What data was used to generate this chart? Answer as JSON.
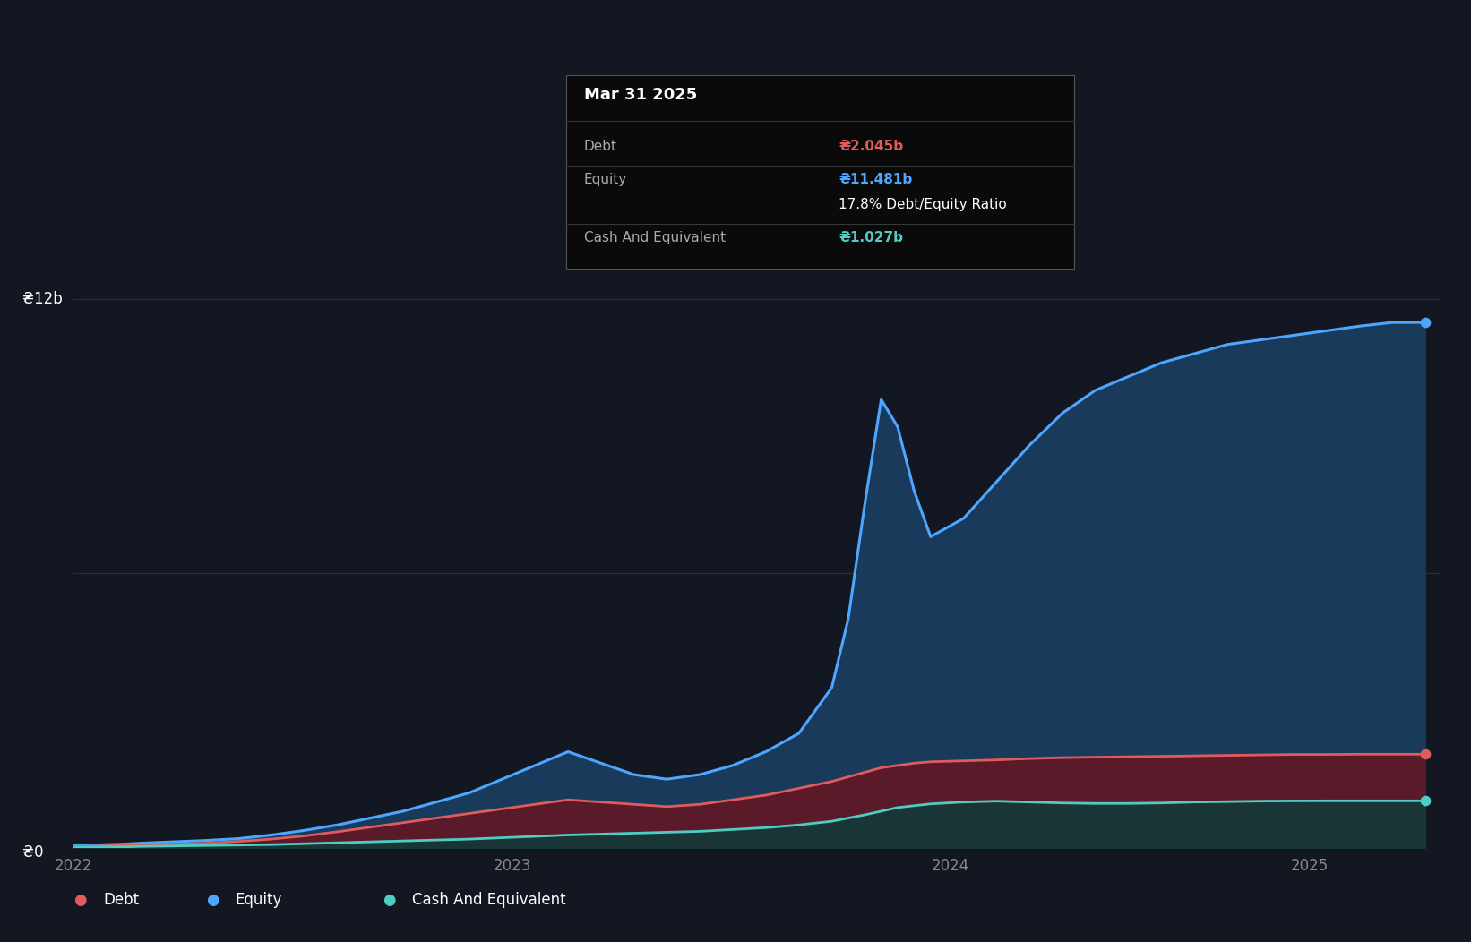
{
  "bg_color": "#131722",
  "grid_color": "#2a2e39",
  "equity_color": "#4da6ff",
  "equity_fill_color": "#1a3a5c",
  "debt_color": "#e05c5c",
  "debt_fill_color": "#5a1a2a",
  "cash_color": "#4ecdc4",
  "cash_fill_color": "#1a3535",
  "ylabel_top": "₴12b",
  "ylabel_zero": "₴0",
  "legend": [
    {
      "label": "Debt",
      "color": "#e05c5c"
    },
    {
      "label": "Equity",
      "color": "#4da6ff"
    },
    {
      "label": "Cash And Equivalent",
      "color": "#4ecdc4"
    }
  ],
  "tooltip": {
    "date": "Mar 31 2025",
    "rows": [
      {
        "label": "Debt",
        "value": "₴2.045b",
        "label_color": "#aaaaaa",
        "value_color": "#e05c5c"
      },
      {
        "label": "Equity",
        "value": "₴11.481b",
        "label_color": "#aaaaaa",
        "value_color": "#4da6ff"
      },
      {
        "label": "",
        "value": "17.8% Debt/Equity Ratio",
        "label_color": "",
        "value_color": "#ffffff"
      },
      {
        "label": "Cash And Equivalent",
        "value": "₴1.027b",
        "label_color": "#aaaaaa",
        "value_color": "#4ecdc4"
      }
    ]
  },
  "time_points": [
    0.0,
    0.05,
    0.1,
    0.15,
    0.2,
    0.3,
    0.4,
    0.5,
    0.6,
    0.7,
    0.8,
    0.9,
    1.0,
    1.1,
    1.2,
    1.3,
    1.4,
    1.5,
    1.6,
    1.7,
    1.8,
    1.9,
    2.0,
    2.1,
    2.2,
    2.3,
    2.35,
    2.4,
    2.45,
    2.5,
    2.55,
    2.6,
    2.7,
    2.8,
    2.9,
    3.0,
    3.1,
    3.2,
    3.3,
    3.4,
    3.5,
    3.6,
    3.7,
    3.8,
    3.9,
    4.0,
    4.1
  ],
  "equity_values": [
    0.05,
    0.06,
    0.07,
    0.08,
    0.1,
    0.13,
    0.16,
    0.2,
    0.28,
    0.38,
    0.5,
    0.65,
    0.8,
    1.0,
    1.2,
    1.5,
    1.8,
    2.1,
    1.85,
    1.6,
    1.5,
    1.6,
    1.8,
    2.1,
    2.5,
    3.5,
    5.0,
    7.5,
    9.8,
    9.2,
    7.8,
    6.8,
    7.2,
    8.0,
    8.8,
    9.5,
    10.0,
    10.3,
    10.6,
    10.8,
    11.0,
    11.1,
    11.2,
    11.3,
    11.4,
    11.481,
    11.481
  ],
  "debt_values": [
    0.02,
    0.03,
    0.04,
    0.05,
    0.06,
    0.08,
    0.1,
    0.14,
    0.19,
    0.26,
    0.35,
    0.45,
    0.55,
    0.65,
    0.75,
    0.85,
    0.95,
    1.05,
    1.0,
    0.95,
    0.9,
    0.95,
    1.05,
    1.15,
    1.3,
    1.45,
    1.55,
    1.65,
    1.75,
    1.8,
    1.85,
    1.88,
    1.9,
    1.92,
    1.95,
    1.97,
    1.98,
    1.99,
    2.0,
    2.01,
    2.02,
    2.03,
    2.04,
    2.04,
    2.045,
    2.045,
    2.045
  ],
  "cash_values": [
    0.01,
    0.01,
    0.02,
    0.02,
    0.03,
    0.04,
    0.05,
    0.06,
    0.07,
    0.09,
    0.11,
    0.13,
    0.15,
    0.17,
    0.19,
    0.22,
    0.25,
    0.28,
    0.3,
    0.32,
    0.34,
    0.36,
    0.4,
    0.44,
    0.5,
    0.58,
    0.65,
    0.72,
    0.8,
    0.88,
    0.92,
    0.96,
    1.0,
    1.02,
    1.0,
    0.98,
    0.97,
    0.97,
    0.98,
    1.0,
    1.01,
    1.02,
    1.025,
    1.027,
    1.027,
    1.027,
    1.027
  ],
  "ymax": 14.0,
  "xmin": 0.0,
  "xmax": 4.15,
  "x_tick_positions": [
    0.0,
    1.33,
    2.66,
    3.75
  ],
  "x_tick_labels": [
    "2022",
    "2023",
    "2024",
    "2025"
  ]
}
